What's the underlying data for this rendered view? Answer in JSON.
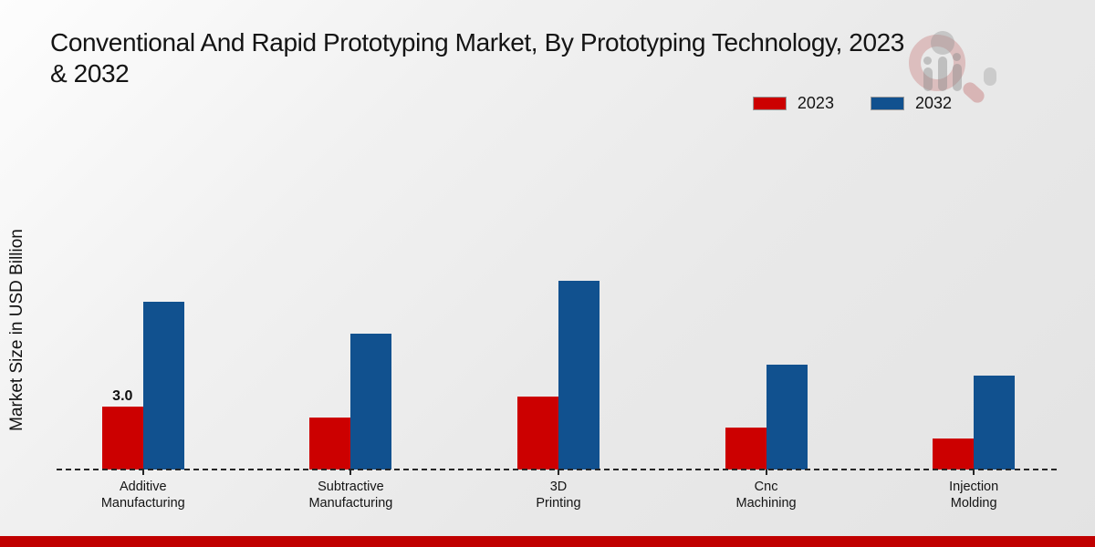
{
  "title_lines": [
    "Conventional And Rapid Prototyping Market, By Prototyping Technology, 2023",
    "& 2032"
  ],
  "ylabel": "Market Size in USD Billion",
  "colors": {
    "series_2023": "#cc0000",
    "series_2032": "#11518f",
    "footer_strip": "#c00000",
    "axis_line": "#262626",
    "text": "#141414"
  },
  "chart_data": {
    "type": "bar",
    "title": "Conventional And Rapid Prototyping Market, By Prototyping Technology, 2023 & 2032",
    "xlabel": "",
    "ylabel": "Market Size in USD Billion",
    "categories": [
      "Additive Manufacturing",
      "Subtractive Manufacturing",
      "3D Printing",
      "Cnc Machining",
      "Injection Molding"
    ],
    "series": [
      {
        "name": "2023",
        "color": "#cc0000",
        "values": [
          3.0,
          2.5,
          3.5,
          2.0,
          1.5
        ]
      },
      {
        "name": "2032",
        "color": "#11518f",
        "values": [
          8.0,
          6.5,
          9.0,
          5.0,
          4.5
        ]
      }
    ],
    "bar_labels": [
      {
        "series_index": 0,
        "category_index": 0,
        "text": "3.0"
      }
    ],
    "ylim": [
      0,
      10
    ],
    "grid": false,
    "y_axis_ticks_visible": false,
    "legend_position": "top-right",
    "baseline_style": "dashed"
  }
}
